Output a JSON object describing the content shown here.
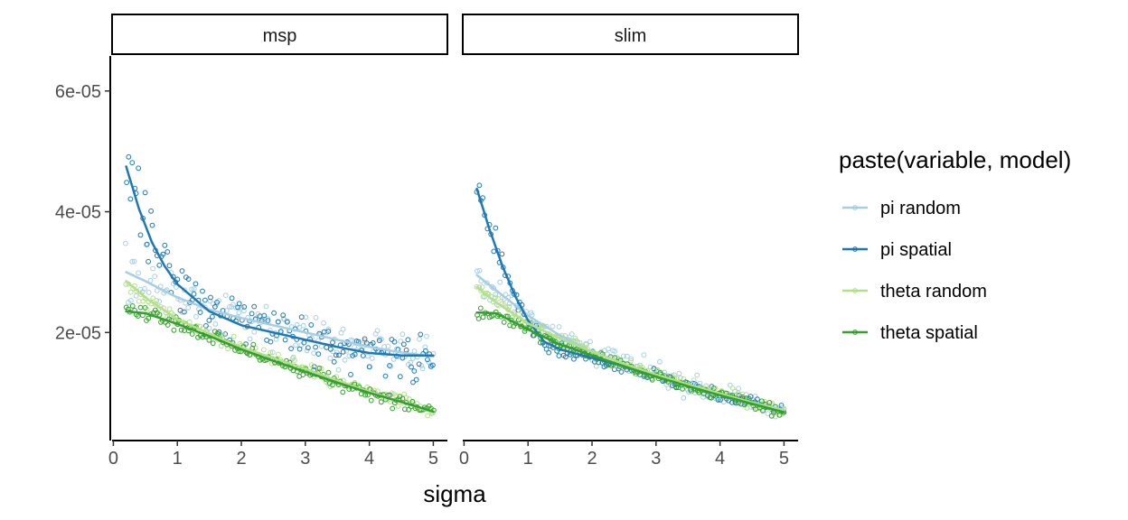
{
  "chart_data": {
    "type": "scatter",
    "title": "",
    "xlabel": "sigma",
    "ylabel": "",
    "xlim": [
      -0.02,
      5.22
    ],
    "ylim": [
      2.1e-06,
      6.58e-05
    ],
    "x_ticks": [
      0,
      1,
      2,
      3,
      4,
      5
    ],
    "x_tick_labels": [
      "0",
      "1",
      "2",
      "3",
      "4",
      "5"
    ],
    "y_ticks": [
      2e-05,
      4e-05,
      6e-05
    ],
    "y_tick_labels": [
      "2e-05",
      "4e-05",
      "6e-05"
    ],
    "grid": false,
    "legend": {
      "title": "paste(variable, model)",
      "position": "right"
    },
    "facets": [
      "msp",
      "slim"
    ],
    "series": [
      {
        "name": "pi random",
        "color": "#a6cee3",
        "trend": {
          "msp": [
            [
              0.2,
              3e-05
            ],
            [
              0.5,
              2.85e-05
            ],
            [
              1.0,
              2.58e-05
            ],
            [
              1.5,
              2.38e-05
            ],
            [
              2.0,
              2.24e-05
            ],
            [
              2.5,
              2.12e-05
            ],
            [
              3.0,
              2e-05
            ],
            [
              3.5,
              1.88e-05
            ],
            [
              4.0,
              1.76e-05
            ],
            [
              4.5,
              1.67e-05
            ],
            [
              5.0,
              1.6e-05
            ]
          ],
          "slim": [
            [
              0.2,
              2.95e-05
            ],
            [
              0.5,
              2.7e-05
            ],
            [
              1.0,
              2.28e-05
            ],
            [
              1.5,
              1.95e-05
            ],
            [
              2.0,
              1.68e-05
            ],
            [
              2.5,
              1.48e-05
            ],
            [
              3.0,
              1.3e-05
            ],
            [
              3.5,
              1.14e-05
            ],
            [
              4.0,
              9.8e-06
            ],
            [
              4.5,
              8.4e-06
            ],
            [
              5.0,
              7.2e-06
            ]
          ]
        }
      },
      {
        "name": "pi spatial",
        "color": "#1f78b4",
        "trend": {
          "msp": [
            [
              0.2,
              4.75e-05
            ],
            [
              0.4,
              4.05e-05
            ],
            [
              0.6,
              3.5e-05
            ],
            [
              0.8,
              3.1e-05
            ],
            [
              1.0,
              2.8e-05
            ],
            [
              1.5,
              2.35e-05
            ],
            [
              2.0,
              2.12e-05
            ],
            [
              2.5,
              2e-05
            ],
            [
              3.0,
              1.88e-05
            ],
            [
              3.5,
              1.76e-05
            ],
            [
              4.0,
              1.66e-05
            ],
            [
              4.5,
              1.62e-05
            ],
            [
              5.0,
              1.62e-05
            ]
          ],
          "slim": [
            [
              0.2,
              4.38e-05
            ],
            [
              0.4,
              3.7e-05
            ],
            [
              0.6,
              3.1e-05
            ],
            [
              0.8,
              2.6e-05
            ],
            [
              1.0,
              2.2e-05
            ],
            [
              1.25,
              1.85e-05
            ],
            [
              1.5,
              1.72e-05
            ],
            [
              2.0,
              1.58e-05
            ],
            [
              2.5,
              1.44e-05
            ],
            [
              3.0,
              1.28e-05
            ],
            [
              3.5,
              1.12e-05
            ],
            [
              4.0,
              9.7e-06
            ],
            [
              4.5,
              8.3e-06
            ],
            [
              5.0,
              6.9e-06
            ]
          ]
        }
      },
      {
        "name": "theta random",
        "color": "#b2df8a",
        "trend": {
          "msp": [
            [
              0.2,
              2.85e-05
            ],
            [
              0.5,
              2.58e-05
            ],
            [
              1.0,
              2.22e-05
            ],
            [
              1.5,
              1.98e-05
            ],
            [
              2.0,
              1.75e-05
            ],
            [
              2.5,
              1.58e-05
            ],
            [
              3.0,
              1.4e-05
            ],
            [
              3.5,
              1.2e-05
            ],
            [
              4.0,
              1.02e-05
            ],
            [
              4.5,
              8.5e-06
            ],
            [
              5.0,
              6.7e-06
            ]
          ],
          "slim": [
            [
              0.2,
              2.75e-05
            ],
            [
              0.5,
              2.5e-05
            ],
            [
              1.0,
              2.15e-05
            ],
            [
              1.5,
              1.9e-05
            ],
            [
              2.0,
              1.68e-05
            ],
            [
              2.5,
              1.48e-05
            ],
            [
              3.0,
              1.3e-05
            ],
            [
              3.5,
              1.14e-05
            ],
            [
              4.0,
              9.9e-06
            ],
            [
              4.5,
              8.4e-06
            ],
            [
              5.0,
              7e-06
            ]
          ]
        }
      },
      {
        "name": "theta spatial",
        "color": "#33a02c",
        "trend": {
          "msp": [
            [
              0.2,
              2.35e-05
            ],
            [
              0.5,
              2.32e-05
            ],
            [
              1.0,
              2.14e-05
            ],
            [
              1.5,
              1.94e-05
            ],
            [
              2.0,
              1.72e-05
            ],
            [
              2.5,
              1.53e-05
            ],
            [
              3.0,
              1.35e-05
            ],
            [
              3.5,
              1.17e-05
            ],
            [
              4.0,
              1e-05
            ],
            [
              4.5,
              8.5e-06
            ],
            [
              5.0,
              6.9e-06
            ]
          ],
          "slim": [
            [
              0.2,
              2.33e-05
            ],
            [
              0.5,
              2.32e-05
            ],
            [
              1.0,
              2.05e-05
            ],
            [
              1.5,
              1.8e-05
            ],
            [
              2.0,
              1.62e-05
            ],
            [
              2.5,
              1.44e-05
            ],
            [
              3.0,
              1.27e-05
            ],
            [
              3.5,
              1.11e-05
            ],
            [
              4.0,
              9.6e-06
            ],
            [
              4.5,
              8.2e-06
            ],
            [
              5.0,
              6.8e-06
            ]
          ]
        }
      }
    ]
  }
}
